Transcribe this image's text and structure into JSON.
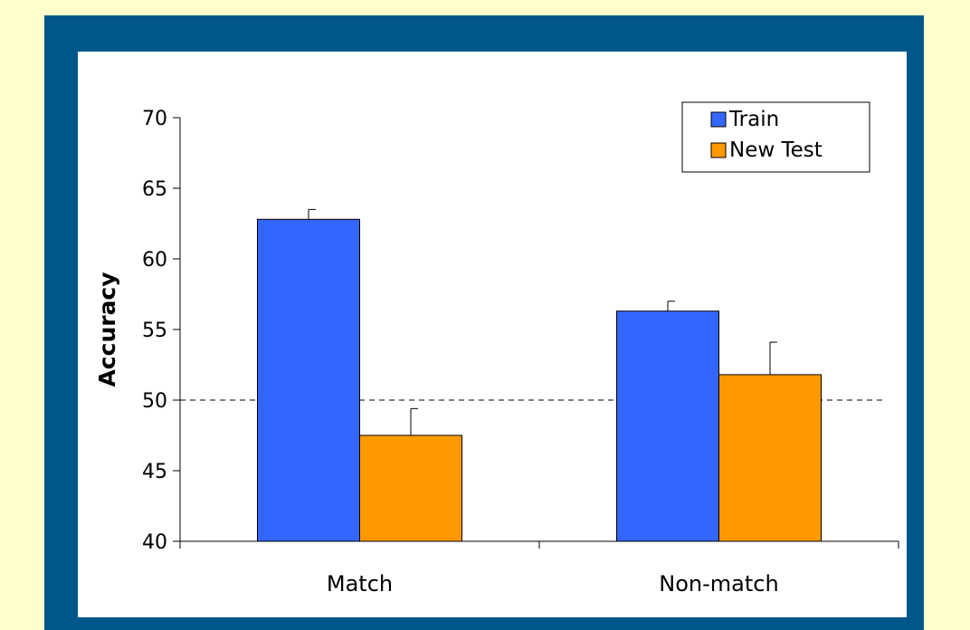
{
  "chart_data": {
    "type": "bar",
    "title": "",
    "xlabel": "",
    "ylabel": "Accuracy",
    "categories": [
      "Match",
      "Non-match"
    ],
    "series": [
      {
        "name": "Train",
        "values": [
          62.8,
          56.3
        ],
        "error_upper": [
          0.7,
          0.7
        ],
        "color": "#3366ff"
      },
      {
        "name": "New Test",
        "values": [
          47.5,
          51.8
        ],
        "error_upper": [
          1.9,
          2.3
        ],
        "color": "#ff9900"
      }
    ],
    "ylim": [
      40,
      70
    ],
    "yticks": [
      40,
      45,
      50,
      55,
      60,
      65,
      70
    ],
    "reference_line": {
      "y": 50,
      "style": "dashed"
    },
    "legend_position": "top-right",
    "grid": false
  },
  "colors": {
    "page_background": "#ffffcc",
    "frame": "#00578a",
    "plot_background": "#ffffff"
  }
}
